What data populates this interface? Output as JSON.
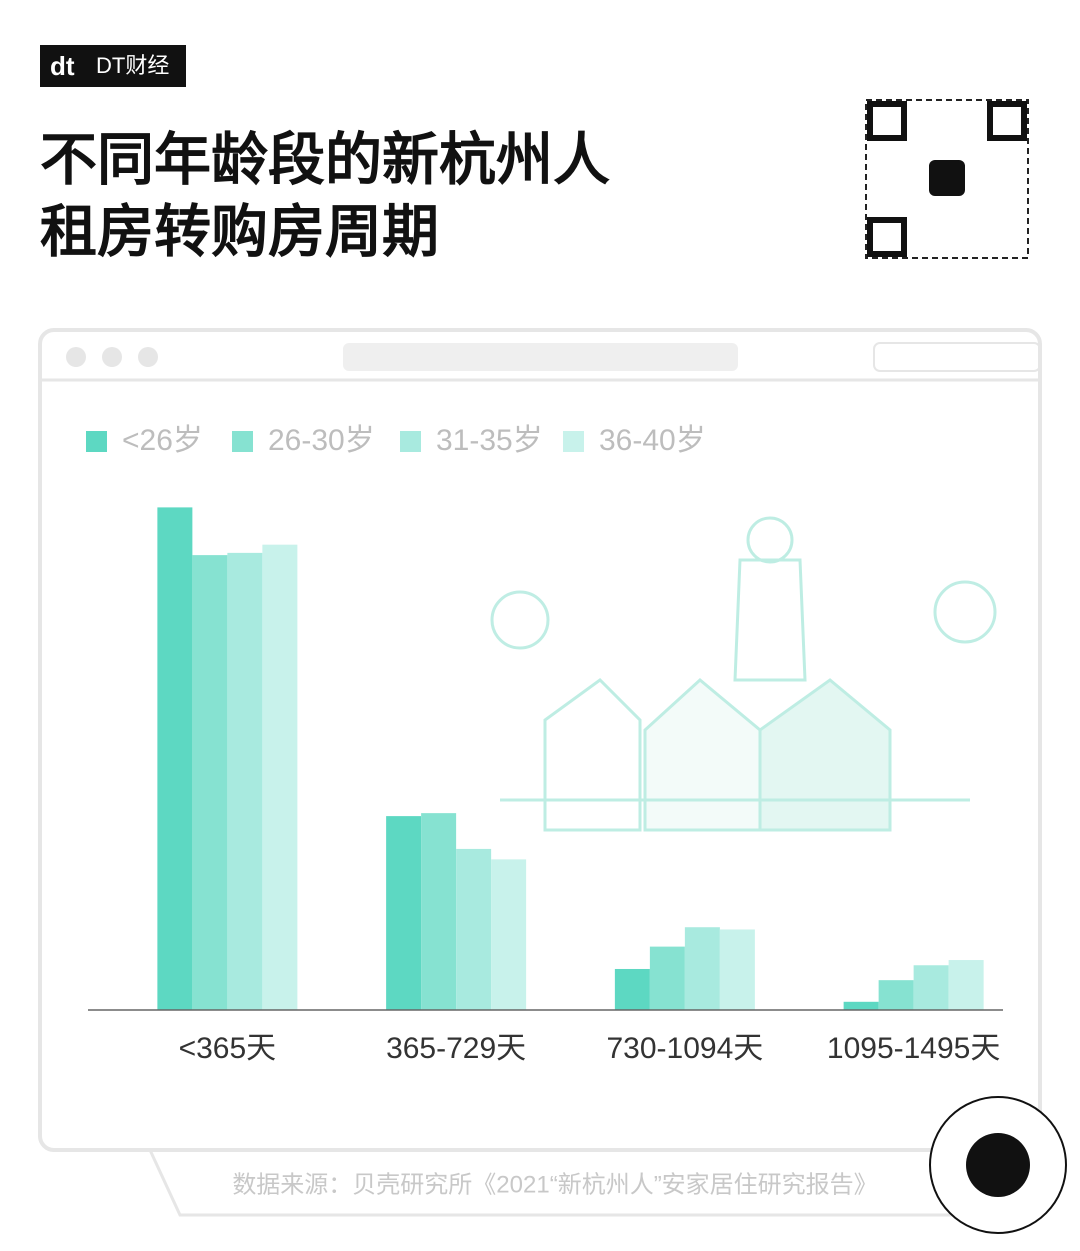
{
  "chart_data": {
    "type": "bar",
    "brand": "DT财经",
    "title": "不同年龄段的新杭州人租房转购房周期",
    "source": "数据来源：贝壳研究所《2021“新杭州人”安家居住研究报告》",
    "categories": [
      "<365天",
      "365-729天",
      "730-1094天",
      "1095-1495天"
    ],
    "series": [
      {
        "name": "<26岁",
        "color": "#5dd8c2",
        "values": [
          67.4,
          26.0,
          5.5,
          1.1
        ]
      },
      {
        "name": "26-30岁",
        "color": "#86e2d1",
        "values": [
          61.0,
          26.4,
          8.5,
          4.0
        ]
      },
      {
        "name": "31-35岁",
        "color": "#a8eadf",
        "values": [
          61.3,
          21.6,
          11.1,
          6.0
        ]
      },
      {
        "name": "36-40岁",
        "color": "#c8f2eb",
        "values": [
          62.4,
          20.2,
          10.8,
          6.7
        ]
      }
    ],
    "ylim": [
      0,
      70
    ],
    "grid": false
  }
}
